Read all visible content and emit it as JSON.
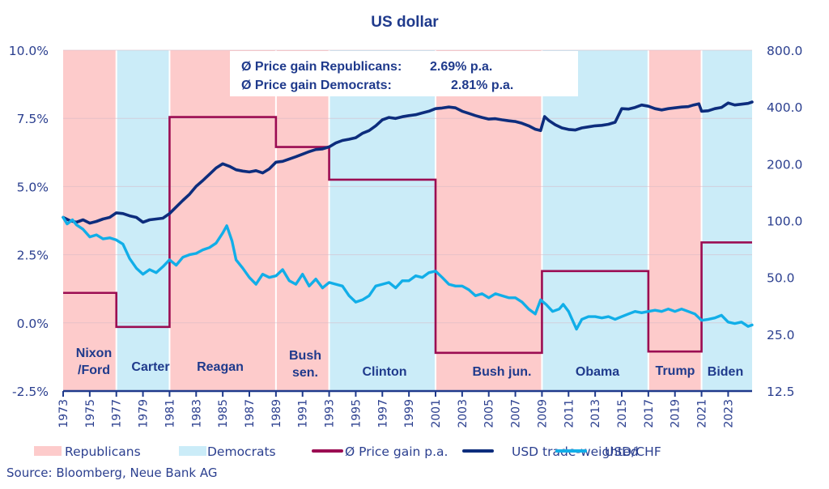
{
  "chart_data": {
    "type": "line",
    "title": "US dollar",
    "xlabel": "",
    "ylabel_left": "",
    "ylabel_right": "",
    "x_range": [
      1973,
      2024.8
    ],
    "x_ticks": [
      "1973",
      "1975",
      "1977",
      "1979",
      "1981",
      "1983",
      "1985",
      "1987",
      "1989",
      "1991",
      "1993",
      "1995",
      "1997",
      "1999",
      "2001",
      "2003",
      "2005",
      "2007",
      "2009",
      "2011",
      "2013",
      "2015",
      "2017",
      "2019",
      "2021",
      "2023"
    ],
    "y_left": {
      "range": [
        -2.5,
        10.0
      ],
      "ticks": [
        "10.0%",
        "7.5%",
        "5.0%",
        "2.5%",
        "0.0%",
        "-2.5%"
      ],
      "tick_values": [
        10.0,
        7.5,
        5.0,
        2.5,
        0.0,
        -2.5
      ]
    },
    "y_right": {
      "scale": "log",
      "range": [
        12.5,
        800.0
      ],
      "ticks": [
        "800.0",
        "400.0",
        "200.0",
        "100.0",
        "50.0",
        "25.0",
        "12.5"
      ],
      "tick_values": [
        800,
        400,
        200,
        100,
        50,
        25,
        12.5
      ]
    },
    "grid": true,
    "legend_placement": "bottom",
    "terms": [
      {
        "president": "Nixon\n/Ford",
        "lines": [
          "Nixon",
          "/Ford"
        ],
        "party": "R",
        "start": 1973,
        "end": 1977,
        "price_gain_pct": 1.1
      },
      {
        "president": "Carter",
        "lines": [
          "Carter"
        ],
        "party": "D",
        "start": 1977,
        "end": 1981,
        "price_gain_pct": -0.15
      },
      {
        "president": "Reagan",
        "lines": [
          "Reagan"
        ],
        "party": "R",
        "start": 1981,
        "end": 1989,
        "price_gain_pct": 7.55
      },
      {
        "president": "Bush sen.",
        "lines": [
          "Bush",
          "sen."
        ],
        "party": "R",
        "start": 1989,
        "end": 1993,
        "price_gain_pct": 6.45
      },
      {
        "president": "Clinton",
        "lines": [
          "Clinton"
        ],
        "party": "D",
        "start": 1993,
        "end": 2001,
        "price_gain_pct": 5.25
      },
      {
        "president": "Bush jun.",
        "lines": [
          "Bush jun."
        ],
        "party": "R",
        "start": 2001,
        "end": 2009,
        "price_gain_pct": -1.1
      },
      {
        "president": "Obama",
        "lines": [
          "Obama"
        ],
        "party": "D",
        "start": 2009,
        "end": 2017,
        "price_gain_pct": 1.9
      },
      {
        "president": "Trump",
        "lines": [
          "Trump"
        ],
        "party": "R",
        "start": 2017,
        "end": 2021,
        "price_gain_pct": -1.05
      },
      {
        "president": "Biden",
        "lines": [
          "Biden"
        ],
        "party": "D",
        "start": 2021,
        "end": 2024.8,
        "price_gain_pct": 2.95
      }
    ],
    "series": [
      {
        "name": "USD trade-weighted",
        "axis": "right",
        "color": "#0d2d7d",
        "x": [
          1973,
          1973.5,
          1974,
          1974.5,
          1975,
          1975.5,
          1976,
          1976.5,
          1977,
          1977.5,
          1978,
          1978.5,
          1979,
          1979.5,
          1980,
          1980.5,
          1981,
          1981.5,
          1982,
          1982.5,
          1983,
          1983.5,
          1984,
          1984.5,
          1985,
          1985.5,
          1986,
          1986.5,
          1987,
          1987.5,
          1988,
          1988.5,
          1989,
          1989.5,
          1990,
          1990.5,
          1991,
          1991.5,
          1992,
          1992.5,
          1993,
          1993.5,
          1994,
          1994.5,
          1995,
          1995.5,
          1996,
          1996.5,
          1997,
          1997.5,
          1998,
          1998.5,
          1999,
          1999.5,
          2000,
          2000.5,
          2001,
          2001.5,
          2002,
          2002.5,
          2003,
          2003.5,
          2004,
          2004.5,
          2005,
          2005.5,
          2006,
          2006.5,
          2007,
          2007.5,
          2008,
          2008.5,
          2008.9,
          2009.2,
          2009.5,
          2010,
          2010.5,
          2011,
          2011.5,
          2012,
          2012.5,
          2013,
          2013.5,
          2014,
          2014.5,
          2015,
          2015.5,
          2016,
          2016.5,
          2017,
          2017.5,
          2018,
          2018.5,
          2019,
          2019.5,
          2020,
          2020.4,
          2020.8,
          2021,
          2021.5,
          2022,
          2022.5,
          2023,
          2023.5,
          2024,
          2024.5,
          2024.8
        ],
        "values": [
          104,
          100,
          98,
          101,
          97,
          99,
          102,
          104,
          110,
          109,
          106,
          104,
          98,
          101,
          102,
          103,
          109,
          118,
          128,
          138,
          152,
          163,
          176,
          190,
          200,
          194,
          186,
          183,
          181,
          184,
          179,
          188,
          204,
          206,
          212,
          218,
          225,
          232,
          238,
          240,
          246,
          258,
          266,
          270,
          275,
          290,
          300,
          318,
          342,
          352,
          348,
          355,
          360,
          364,
          372,
          380,
          392,
          395,
          400,
          396,
          380,
          370,
          360,
          352,
          345,
          347,
          342,
          338,
          335,
          328,
          318,
          305,
          300,
          356,
          340,
          322,
          310,
          304,
          302,
          310,
          314,
          318,
          320,
          324,
          332,
          392,
          390,
          398,
          410,
          404,
          392,
          386,
          392,
          396,
          400,
          402,
          410,
          416,
          380,
          382,
          392,
          398,
          420,
          410,
          414,
          418,
          425
        ]
      },
      {
        "name": "USD/CHF",
        "axis": "right",
        "color": "#11aee8",
        "x": [
          1973,
          1973.3,
          1973.7,
          1974,
          1974.5,
          1975,
          1975.5,
          1976,
          1976.5,
          1977,
          1977.5,
          1978,
          1978.5,
          1979,
          1979.5,
          1980,
          1980.5,
          1981,
          1981.5,
          1982,
          1982.5,
          1983,
          1983.5,
          1984,
          1984.5,
          1985,
          1985.3,
          1985.7,
          1986,
          1986.5,
          1987,
          1987.5,
          1988,
          1988.5,
          1989,
          1989.5,
          1990,
          1990.5,
          1991,
          1991.5,
          1992,
          1992.5,
          1993,
          1993.5,
          1994,
          1994.5,
          1995,
          1995.5,
          1996,
          1996.5,
          1997,
          1997.5,
          1998,
          1998.5,
          1999,
          1999.5,
          2000,
          2000.5,
          2001,
          2001.5,
          2002,
          2002.5,
          2003,
          2003.5,
          2004,
          2004.5,
          2005,
          2005.5,
          2006,
          2006.5,
          2007,
          2007.5,
          2008,
          2008.5,
          2008.9,
          2009.3,
          2009.8,
          2010.3,
          2010.6,
          2011,
          2011.6,
          2012,
          2012.5,
          2013,
          2013.5,
          2014,
          2014.5,
          2015,
          2015.5,
          2016,
          2016.5,
          2017,
          2017.5,
          2018,
          2018.5,
          2019,
          2019.5,
          2020,
          2020.5,
          2021,
          2021.5,
          2022,
          2022.5,
          2023,
          2023.5,
          2024,
          2024.5,
          2024.8
        ],
        "values": [
          104,
          96,
          101,
          95,
          90,
          82,
          84,
          80,
          81,
          79,
          75,
          63,
          56,
          52,
          55,
          53,
          57,
          62,
          58,
          64,
          66,
          67,
          70,
          72,
          76,
          86,
          94,
          78,
          62,
          56,
          50,
          46,
          52,
          50,
          51,
          55,
          48,
          46,
          52,
          45,
          49,
          44,
          47,
          46,
          45,
          40,
          37,
          38,
          40,
          45,
          46,
          47,
          44,
          48,
          48,
          51,
          50,
          53,
          54,
          50,
          46,
          45,
          45,
          43,
          40,
          41,
          39,
          41,
          40,
          39,
          39,
          37,
          34,
          32,
          38,
          36,
          33,
          34,
          36,
          33,
          26.6,
          30,
          31,
          31,
          30.5,
          31,
          30,
          31,
          32,
          33,
          32.5,
          33,
          33.5,
          33,
          34,
          33,
          34,
          33,
          32,
          29.6,
          30,
          30.5,
          31.5,
          29,
          28.5,
          29,
          27.5,
          28
        ]
      }
    ]
  },
  "info_box": {
    "rows": [
      {
        "label": "Ø Price gain Republicans:",
        "value": "2.69% p.a."
      },
      {
        "label": "Ø Price gain Democrats:",
        "value": "2.81% p.a."
      }
    ]
  },
  "legend": {
    "items": [
      {
        "label": "Republicans",
        "kind": "patch",
        "color": "#fdcbcb"
      },
      {
        "label": "Democrats",
        "kind": "patch",
        "color": "#cbecf8"
      },
      {
        "label": "Ø Price gain p.a.",
        "kind": "line",
        "color": "#9b0c52"
      },
      {
        "label": "USD trade-weighted",
        "kind": "line",
        "color": "#0d2d7d"
      },
      {
        "label": "USD/CHF",
        "kind": "line",
        "color": "#11aee8"
      }
    ]
  },
  "colors": {
    "republican": "#fdcbcb",
    "democrat": "#cbecf8",
    "price_gain": "#9b0c52",
    "usd_tw": "#0d2d7d",
    "usd_chf": "#11aee8",
    "axis": "#1f3a8c",
    "grid": "#d6b8c6"
  },
  "source": "Source: Bloomberg, Neue Bank AG"
}
